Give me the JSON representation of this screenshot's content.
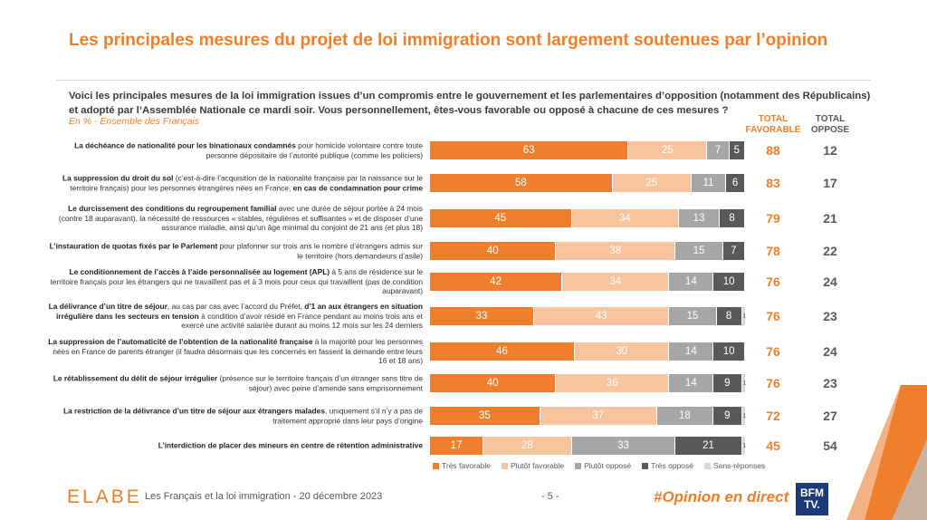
{
  "header": {
    "title": "Les principales mesures du projet de loi immigration sont largement soutenues par l’opinion",
    "question": "Voici les principales mesures de la loi immigration issues d’un compromis entre le gouvernement et les parlementaires d’opposition (notamment des Républicains) et adopté par l’Assemblée Nationale ce mardi soir. Vous personnellement, êtes-vous favorable ou opposé à chacune de ces mesures ?",
    "base": "En % - Ensemble des Français",
    "total_favorable": "TOTAL FAVORABLE",
    "total_oppose": "TOTAL OPPOSE"
  },
  "colors": {
    "tres_favorable": "#ee7f2d",
    "plutot_favorable": "#f8c49d",
    "plutot_oppose": "#a6a6a6",
    "tres_oppose": "#595959",
    "sans_reponses": "#d9d9d9",
    "accent": "#ee7f2d"
  },
  "chart_data": {
    "type": "bar",
    "orientation": "horizontal-stacked-100",
    "categories": [
      "La déchéance de nationalité pour les binationaux condamnés pour homicide volontaire contre toute personne dépositaire de l’autorité publique (comme les policiers)",
      "La suppression du droit du sol (c’est-à-dire l’acquisition de la nationalité française par la naissance sur le territoire français) pour les personnes étrangères nées en France, en cas de condamnation pour crime",
      "Le durcissement des conditions du regroupement familial avec une durée de séjour portée à 24 mois (contre 18 auparavant), la nécessité de ressources « stables, régulières et suffisantes » et de disposer d’une assurance maladie, ainsi qu’un âge minimal du conjoint de 21 ans (et plus 18)",
      "L’instauration de quotas fixés par le Parlement pour plafonner sur trois ans le nombre d’étrangers admis sur le territoire (hors demandeurs d’asile)",
      "Le conditionnement de l’accès à l’aide personnalisée au logement (APL) à 5 ans de résidence sur le territoire français pour les étrangers qui ne travaillent pas et à 3 mois pour ceux qui travaillent (pas de condition auparavant)",
      "La délivrance d’un titre de séjour, au cas par cas avec l’accord du Préfet, d’1 an aux étrangers en situation irrégulière dans les secteurs en tension à condition d’avoir résidé en France pendant au moins trois ans et exercé une activité salariée durant au moins 12 mois sur les 24 derniers",
      "La suppression de l’automaticité de l’obtention de la nationalité française à la majorité pour les personnes nées en France de parents étranger (il faudra désormais que les concernés en fassent la demande entre leurs 16 et 18 ans)",
      "Le rétablissement du délit de séjour irrégulier (présence sur le territoire français d’un étranger sans titre de séjour) avec peine d’amende sans emprisonnement",
      "La restriction de la délivrance d’un titre de séjour aux étrangers malades, uniquement s’il n’y a pas de traitement approprié dans leur pays d’origine",
      "L’interdiction de placer des mineurs en centre de rétention administrative"
    ],
    "label_parts": [
      [
        {
          "b": "La déchéance de nationalité pour les binationaux condamnés"
        },
        {
          "t": " pour homicide volontaire contre toute personne dépositaire de l’autorité publique (comme les policiers)"
        }
      ],
      [
        {
          "b": "La suppression du droit du sol"
        },
        {
          "t": " (c’est-à-dire l’acquisition de la nationalité française par la naissance sur le territoire français) pour les personnes étrangères nées en France, "
        },
        {
          "b": "en cas de condamnation pour crime"
        }
      ],
      [
        {
          "b": "Le durcissement des conditions du regroupement familial"
        },
        {
          "t": " avec une durée de séjour portée à 24 mois (contre 18 auparavant), la nécessité de ressources « stables, régulières et suffisantes » et de disposer d’une assurance maladie, ainsi qu’un âge minimal du conjoint de 21 ans (et plus 18)"
        }
      ],
      [
        {
          "b": "L’instauration de quotas fixés par le Parlement"
        },
        {
          "t": " pour plafonner sur trois ans le nombre d’étrangers admis sur le territoire (hors demandeurs d’asile)"
        }
      ],
      [
        {
          "b": "Le conditionnement de l’accès à l’aide personnalisée au logement (APL)"
        },
        {
          "t": " à 5 ans de résidence sur le territoire français pour les étrangers qui ne travaillent pas et à 3 mois pour ceux qui travaillent (pas de condition auparavant)"
        }
      ],
      [
        {
          "b": "La délivrance d’un titre de séjour"
        },
        {
          "t": ", au cas par cas avec l’accord du Préfet, "
        },
        {
          "b": "d’1 an aux étrangers en situation irrégulière dans les secteurs en tension"
        },
        {
          "t": " à condition d’avoir résidé en France pendant au moins trois ans et exercé une activité salariée durant au moins 12 mois sur les 24 derniers"
        }
      ],
      [
        {
          "b": "La suppression de l’automaticité de l’obtention de la nationalité française"
        },
        {
          "t": " à la majorité pour les personnes nées en France de parents étranger (il faudra désormais que les concernés en fassent la demande entre leurs 16 et 18 ans)"
        }
      ],
      [
        {
          "b": "Le rétablissement du délit de séjour irrégulier"
        },
        {
          "t": " (présence sur le territoire français d’un étranger sans titre de séjour) avec peine d’amende sans emprisonnement"
        }
      ],
      [
        {
          "b": "La restriction de la délivrance d’un titre de séjour aux étrangers malades"
        },
        {
          "t": ", uniquement s’il n’y a pas de traitement approprié dans leur pays d’origine"
        }
      ],
      [
        {
          "b": "L’interdiction de placer des mineurs en centre de rétention administrative"
        }
      ]
    ],
    "series": [
      {
        "name": "Très favorable",
        "values": [
          63,
          58,
          45,
          40,
          42,
          33,
          46,
          40,
          35,
          17
        ]
      },
      {
        "name": "Plutôt favorable",
        "values": [
          25,
          25,
          34,
          38,
          34,
          43,
          30,
          36,
          37,
          28
        ]
      },
      {
        "name": "Plutôt opposé",
        "values": [
          7,
          11,
          13,
          15,
          14,
          15,
          14,
          14,
          18,
          33
        ]
      },
      {
        "name": "Très opposé",
        "values": [
          5,
          6,
          8,
          7,
          10,
          8,
          10,
          9,
          9,
          21
        ]
      },
      {
        "name": "Sans-réponses",
        "values": [
          0,
          0,
          0,
          0,
          0,
          1,
          0,
          1,
          1,
          1
        ]
      }
    ],
    "total_favorable": [
      88,
      83,
      79,
      78,
      76,
      76,
      76,
      76,
      72,
      45
    ],
    "total_oppose": [
      12,
      17,
      21,
      22,
      24,
      23,
      24,
      23,
      27,
      54
    ],
    "xlim": [
      0,
      100
    ],
    "legend_position": "bottom"
  },
  "footer": {
    "brand": "ELABE",
    "text": "Les Français et la loi immigration - 20 décembre 2023",
    "page": "- 5 -",
    "hashtag": "#Opinion en direct",
    "partner_line1": "BFM",
    "partner_line2": "TV."
  }
}
